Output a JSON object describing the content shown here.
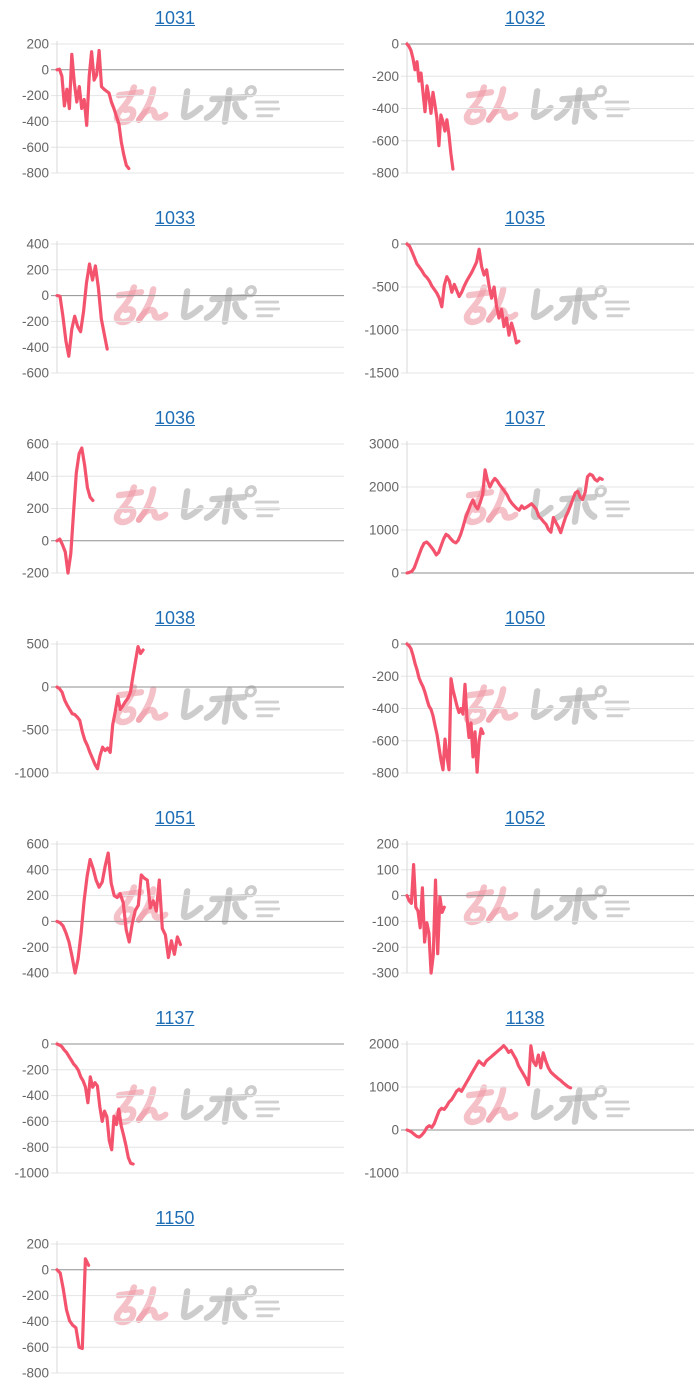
{
  "page": {
    "background": "#ffffff"
  },
  "style": {
    "line_color": "#f4536e",
    "grid_color": "#e4e4e4",
    "zero_line_color": "#8f8f8f",
    "axis_line_color": "#d9d9d9",
    "tick_label_color": "#666666",
    "title_link_color": "#1f6eb5"
  },
  "watermark": {
    "text": "みんレポ",
    "text_pink": "みん",
    "text_gray": "レポ",
    "pink_color": "#ef97a3",
    "gray_color": "#b0b0b0"
  },
  "chart_data": [
    {
      "type": "line",
      "title": "1031",
      "yticks": [
        200,
        0,
        -200,
        -400,
        -600,
        -800
      ],
      "ylim": [
        -800,
        200
      ],
      "span": 0.25,
      "values": [
        0,
        5,
        -50,
        -280,
        -150,
        -300,
        120,
        -100,
        -250,
        -130,
        -300,
        -230,
        -430,
        -50,
        140,
        -80,
        -40,
        150,
        -130,
        -150,
        -165,
        -180,
        -250,
        -300,
        -360,
        -420,
        -560,
        -660,
        -740,
        -765
      ]
    },
    {
      "type": "line",
      "title": "1032",
      "yticks": [
        0,
        -200,
        -400,
        -600,
        -800
      ],
      "ylim": [
        -800,
        0
      ],
      "span": 0.16,
      "values": [
        0,
        -15,
        -40,
        -90,
        -160,
        -110,
        -230,
        -180,
        -300,
        -420,
        -260,
        -330,
        -430,
        -300,
        -380,
        -460,
        -630,
        -440,
        -480,
        -540,
        -470,
        -560,
        -680,
        -775
      ]
    },
    {
      "type": "line",
      "title": "1033",
      "yticks": [
        400,
        200,
        0,
        -200,
        -400,
        -600
      ],
      "ylim": [
        -600,
        400
      ],
      "span": 0.175,
      "values": [
        0,
        -5,
        -160,
        -350,
        -470,
        -260,
        -160,
        -240,
        -280,
        -120,
        100,
        245,
        120,
        230,
        60,
        -180,
        -300,
        -415
      ]
    },
    {
      "type": "line",
      "title": "1035",
      "yticks": [
        0,
        -500,
        -1000,
        -1500
      ],
      "ylim": [
        -1500,
        0
      ],
      "span": 0.39,
      "values": [
        0,
        -25,
        -90,
        -160,
        -230,
        -270,
        -310,
        -360,
        -390,
        -430,
        -490,
        -530,
        -570,
        -630,
        -730,
        -480,
        -380,
        -430,
        -560,
        -470,
        -540,
        -610,
        -560,
        -490,
        -430,
        -380,
        -330,
        -270,
        -210,
        -60,
        -260,
        -360,
        -300,
        -490,
        -630,
        -500,
        -720,
        -860,
        -760,
        -960,
        -860,
        -1060,
        -920,
        -1020,
        -1150,
        -1130
      ]
    },
    {
      "type": "line",
      "title": "1036",
      "yticks": [
        600,
        400,
        200,
        0,
        -200
      ],
      "ylim": [
        -200,
        600
      ],
      "span": 0.125,
      "values": [
        0,
        10,
        -25,
        -70,
        -200,
        -80,
        180,
        420,
        540,
        575,
        470,
        330,
        270,
        250
      ]
    },
    {
      "type": "line",
      "title": "1037",
      "yticks": [
        3000,
        2000,
        1000,
        0
      ],
      "ylim": [
        0,
        3000
      ],
      "span": 0.68,
      "values": [
        0,
        15,
        40,
        120,
        280,
        430,
        580,
        690,
        720,
        670,
        600,
        520,
        420,
        480,
        640,
        790,
        900,
        860,
        790,
        730,
        700,
        760,
        900,
        1080,
        1280,
        1430,
        1580,
        1700,
        1560,
        1490,
        1640,
        1820,
        2400,
        2150,
        2000,
        2120,
        2200,
        2140,
        2050,
        1980,
        1900,
        1820,
        1700,
        1620,
        1560,
        1500,
        1460,
        1560,
        1500,
        1530,
        1570,
        1610,
        1550,
        1480,
        1320,
        1260,
        1190,
        1130,
        1010,
        950,
        1290,
        1180,
        1080,
        940,
        1120,
        1300,
        1420,
        1560,
        1720,
        1860,
        1900,
        1760,
        1710,
        1870,
        2240,
        2300,
        2270,
        2180,
        2140,
        2210,
        2180
      ]
    },
    {
      "type": "line",
      "title": "1038",
      "yticks": [
        500,
        0,
        -500,
        -1000
      ],
      "ylim": [
        -1000,
        500
      ],
      "span": 0.3,
      "values": [
        0,
        -20,
        -60,
        -150,
        -210,
        -260,
        -310,
        -320,
        -350,
        -390,
        -520,
        -620,
        -680,
        -760,
        -830,
        -900,
        -950,
        -800,
        -700,
        -740,
        -710,
        -760,
        -440,
        -290,
        -110,
        -260,
        -220,
        -170,
        -130,
        -60,
        130,
        300,
        470,
        390,
        430
      ]
    },
    {
      "type": "line",
      "title": "1050",
      "yticks": [
        0,
        -200,
        -400,
        -600,
        -800
      ],
      "ylim": [
        -800,
        0
      ],
      "span": 0.265,
      "values": [
        0,
        -10,
        -30,
        -70,
        -120,
        -160,
        -210,
        -240,
        -265,
        -300,
        -345,
        -385,
        -405,
        -445,
        -505,
        -560,
        -640,
        -720,
        -780,
        -590,
        -700,
        -780,
        -215,
        -285,
        -335,
        -385,
        -425,
        -400,
        -435,
        -250,
        -460,
        -580,
        -490,
        -700,
        -545,
        -795,
        -600,
        -525,
        -555
      ]
    },
    {
      "type": "line",
      "title": "1051",
      "yticks": [
        600,
        400,
        200,
        0,
        -200,
        -400
      ],
      "ylim": [
        -400,
        600
      ],
      "span": 0.43,
      "values": [
        0,
        -10,
        -35,
        -90,
        -160,
        -270,
        -400,
        -290,
        -90,
        160,
        350,
        480,
        410,
        320,
        265,
        305,
        430,
        530,
        295,
        200,
        185,
        215,
        145,
        -65,
        -160,
        -15,
        85,
        125,
        360,
        335,
        320,
        105,
        160,
        80,
        320,
        -55,
        -105,
        -280,
        -150,
        -255,
        -120,
        -180
      ]
    },
    {
      "type": "line",
      "title": "1052",
      "yticks": [
        200,
        100,
        0,
        -100,
        -200,
        -300
      ],
      "ylim": [
        -300,
        200
      ],
      "span": 0.13,
      "values": [
        0,
        -20,
        -30,
        120,
        -45,
        -60,
        -125,
        30,
        -180,
        -105,
        -145,
        -300,
        -230,
        60,
        -225,
        -5,
        -65,
        -45
      ]
    },
    {
      "type": "line",
      "title": "1137",
      "yticks": [
        0,
        -200,
        -400,
        -600,
        -800,
        -1000
      ],
      "ylim": [
        -1000,
        0
      ],
      "span": 0.265,
      "values": [
        0,
        -8,
        -20,
        -45,
        -65,
        -95,
        -125,
        -155,
        -175,
        -205,
        -255,
        -285,
        -335,
        -455,
        -255,
        -335,
        -300,
        -325,
        -485,
        -600,
        -520,
        -565,
        -750,
        -820,
        -560,
        -625,
        -505,
        -635,
        -705,
        -785,
        -880,
        -925,
        -930
      ]
    },
    {
      "type": "line",
      "title": "1138",
      "yticks": [
        2000,
        1000,
        0,
        -1000
      ],
      "ylim": [
        -1000,
        2000
      ],
      "span": 0.57,
      "values": [
        0,
        -20,
        -55,
        -105,
        -150,
        -165,
        -115,
        -45,
        55,
        100,
        60,
        150,
        300,
        450,
        505,
        480,
        555,
        650,
        705,
        800,
        905,
        950,
        900,
        1005,
        1105,
        1205,
        1305,
        1405,
        1505,
        1605,
        1550,
        1505,
        1605,
        1655,
        1705,
        1755,
        1805,
        1855,
        1905,
        1960,
        1900,
        1805,
        1850,
        1745,
        1645,
        1495,
        1395,
        1295,
        1195,
        1055,
        1955,
        1590,
        1500,
        1745,
        1445,
        1795,
        1600,
        1450,
        1350,
        1295,
        1245,
        1195,
        1150,
        1095,
        1050,
        1005,
        980
      ]
    },
    {
      "type": "line",
      "title": "1150",
      "yticks": [
        200,
        0,
        -200,
        -400,
        -600,
        -800
      ],
      "ylim": [
        -800,
        200
      ],
      "span": 0.11,
      "values": [
        0,
        -25,
        -150,
        -310,
        -395,
        -430,
        -450,
        -600,
        -610,
        85,
        35
      ]
    }
  ]
}
